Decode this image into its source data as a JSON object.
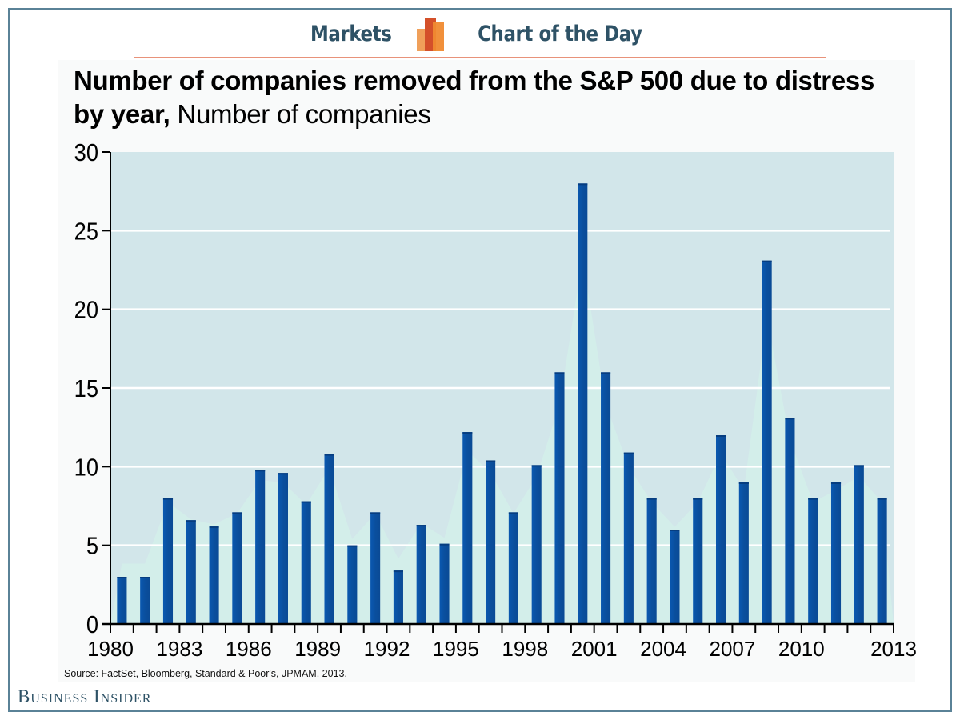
{
  "banner": {
    "left_label": "Markets",
    "right_label": "Chart of the Day",
    "logo_icon": "bar-chart-logo-icon",
    "logo_colors": [
      "#f0a05a",
      "#d4502a",
      "#f08a30"
    ],
    "rule_color": "#e8927a"
  },
  "header": {
    "title_bold": "Number of companies removed from the S&P 500 due to distress by year,",
    "title_regular": "Number of companies"
  },
  "footer": {
    "source": "Source: FactSet, Bloomberg, Standard & Poor's, JPMAM. 2013.",
    "brand": "Business Insider"
  },
  "colors": {
    "bar": "#0a4f9e",
    "bar_top": "#063d80",
    "plot_bg": "#d2e6ea",
    "plot_glow": "#d4efea",
    "grid": "#ffffff",
    "frame": "#5a8297",
    "brand": "#2e5266"
  },
  "chart_data": {
    "type": "bar",
    "title": "Number of companies removed from the S&P 500 due to distress by year, Number of companies",
    "xlabel": "",
    "ylabel": "Number of companies",
    "ylim": [
      0,
      30
    ],
    "yticks": [
      0,
      5,
      10,
      15,
      20,
      25,
      30
    ],
    "grid": true,
    "legend": "none",
    "categories": [
      "1980",
      "1981",
      "1982",
      "1983",
      "1984",
      "1985",
      "1986",
      "1987",
      "1988",
      "1989",
      "1990",
      "1991",
      "1992",
      "1993",
      "1994",
      "1995",
      "1996",
      "1997",
      "1998",
      "1999",
      "2000",
      "2001",
      "2002",
      "2003",
      "2004",
      "2005",
      "2006",
      "2007",
      "2008",
      "2009",
      "2010",
      "2011",
      "2012",
      "2013"
    ],
    "xtick_labels": [
      "1980",
      "1983",
      "1986",
      "1989",
      "1992",
      "1995",
      "1998",
      "2001",
      "2004",
      "2007",
      "2010",
      "2013"
    ],
    "values": [
      3,
      3,
      8,
      6.6,
      6.2,
      7.1,
      9.8,
      9.6,
      7.8,
      10.8,
      5,
      7.1,
      3.4,
      6.3,
      5.1,
      12.2,
      10.4,
      7.1,
      10.1,
      16,
      28,
      16,
      10.9,
      8,
      6,
      8,
      12,
      9,
      23.1,
      13.1,
      8,
      9,
      10.1,
      8
    ]
  }
}
